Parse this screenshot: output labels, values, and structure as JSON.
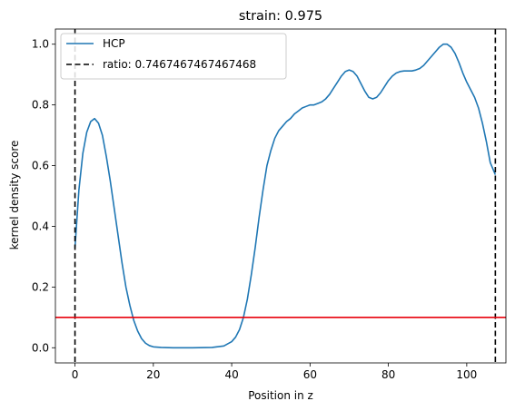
{
  "chart_data": {
    "type": "line",
    "title": "strain: 0.975",
    "xlabel": "Position in z",
    "ylabel": "kernel density score",
    "xlim": [
      -5,
      110
    ],
    "ylim": [
      -0.05,
      1.05
    ],
    "xticks": [
      0,
      20,
      40,
      60,
      80,
      100
    ],
    "yticks": [
      0.0,
      0.2,
      0.4,
      0.6,
      0.8,
      1.0
    ],
    "xtick_labels": [
      "0",
      "20",
      "40",
      "60",
      "80",
      "100"
    ],
    "ytick_labels": [
      "0.0",
      "0.2",
      "0.4",
      "0.6",
      "0.8",
      "1.0"
    ],
    "grid": false,
    "legend_position": "top-left",
    "series": [
      {
        "name": "HCP",
        "color": "#1f77b4",
        "x": [
          0,
          1,
          2,
          3,
          4,
          5,
          6,
          7,
          8,
          9,
          10,
          11,
          12,
          13,
          14,
          15,
          16,
          17,
          18,
          19,
          20,
          22,
          25,
          30,
          35,
          38,
          40,
          41,
          42,
          43,
          44,
          45,
          46,
          47,
          48,
          49,
          50,
          51,
          52,
          53,
          54,
          55,
          56,
          57,
          58,
          59,
          60,
          61,
          62,
          63,
          64,
          65,
          66,
          67,
          68,
          69,
          70,
          71,
          72,
          73,
          74,
          75,
          76,
          77,
          78,
          79,
          80,
          81,
          82,
          83,
          84,
          85,
          86,
          87,
          88,
          89,
          90,
          91,
          92,
          93,
          94,
          95,
          96,
          97,
          98,
          99,
          100,
          101,
          102,
          103,
          104,
          105,
          106,
          107.3
        ],
        "y": [
          0.33,
          0.52,
          0.64,
          0.71,
          0.745,
          0.755,
          0.74,
          0.7,
          0.63,
          0.55,
          0.46,
          0.37,
          0.28,
          0.2,
          0.14,
          0.09,
          0.055,
          0.03,
          0.015,
          0.007,
          0.003,
          0.001,
          0.0,
          0.0,
          0.001,
          0.006,
          0.02,
          0.035,
          0.06,
          0.1,
          0.16,
          0.24,
          0.33,
          0.43,
          0.52,
          0.6,
          0.65,
          0.69,
          0.715,
          0.73,
          0.745,
          0.755,
          0.77,
          0.78,
          0.79,
          0.795,
          0.8,
          0.8,
          0.805,
          0.81,
          0.82,
          0.835,
          0.855,
          0.875,
          0.895,
          0.91,
          0.915,
          0.91,
          0.895,
          0.87,
          0.845,
          0.825,
          0.82,
          0.825,
          0.84,
          0.86,
          0.88,
          0.895,
          0.905,
          0.91,
          0.912,
          0.912,
          0.912,
          0.915,
          0.92,
          0.93,
          0.945,
          0.96,
          0.975,
          0.99,
          1.0,
          1.0,
          0.99,
          0.97,
          0.94,
          0.905,
          0.875,
          0.85,
          0.825,
          0.79,
          0.74,
          0.68,
          0.61,
          0.57
        ]
      },
      {
        "name": "ratio: 0.7467467467467468",
        "color": "#000000",
        "style": "dashed",
        "vlines": [
          0,
          107.3
        ]
      },
      {
        "name": "",
        "color": "#e8000b",
        "hline": 0.1
      }
    ]
  }
}
